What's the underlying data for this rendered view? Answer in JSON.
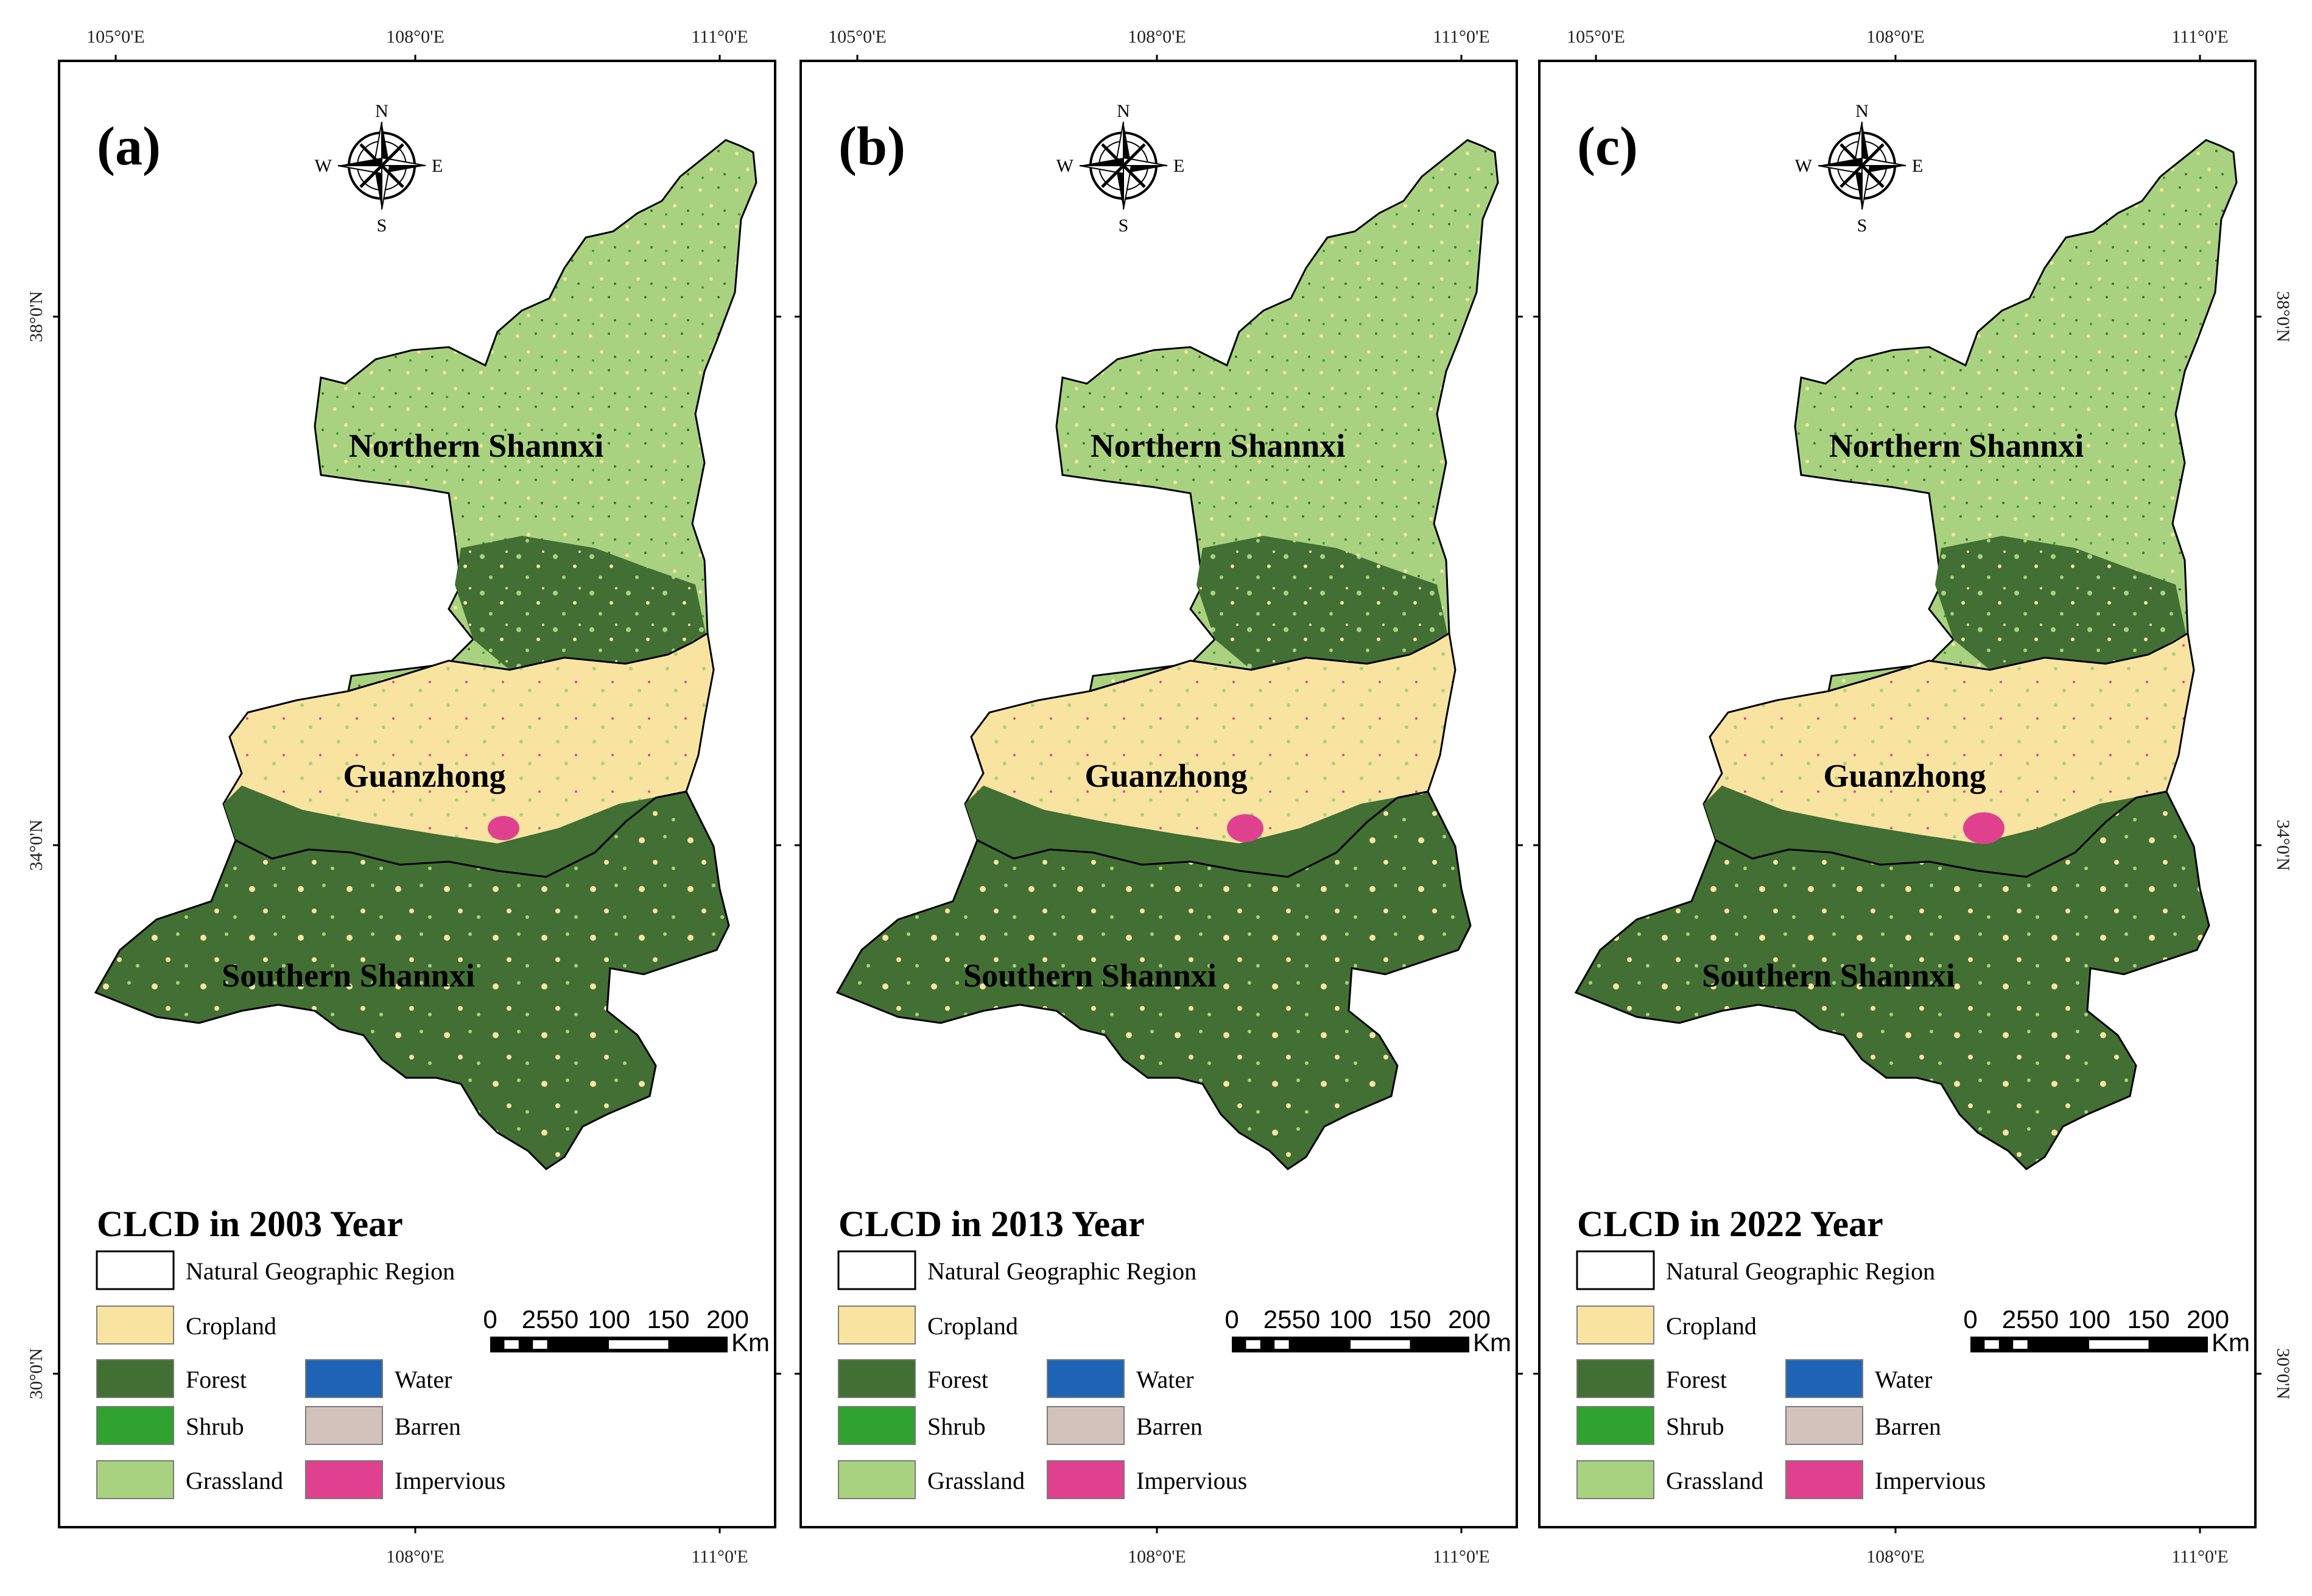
{
  "figure": {
    "panels": [
      {
        "letter": "(a)",
        "title": "CLCD in 2003 Year"
      },
      {
        "letter": "(b)",
        "title": "CLCD in 2013 Year"
      },
      {
        "letter": "(c)",
        "title": "CLCD in 2022 Year"
      }
    ],
    "lon_ticks_top": [
      "105°0'E",
      "108°0'E",
      "111°0'E"
    ],
    "lon_ticks_bottom": [
      "108°0'E",
      "111°0'E"
    ],
    "lat_ticks_left": [
      "38°0'N",
      "34°0'N",
      "30°0'N"
    ],
    "lat_ticks_right": [
      "38°0'N",
      "34°0'N",
      "30°0'N"
    ],
    "regions": [
      "Northern Shannxi",
      "Guanzhong",
      "Southern Shannxi"
    ],
    "compass": {
      "n": "N",
      "s": "S",
      "e": "E",
      "w": "W"
    },
    "legend": {
      "boundary_label": "Natural Geographic Region",
      "classes": [
        {
          "name": "Cropland",
          "color": "#f9e3a1"
        },
        {
          "name": "Forest",
          "color": "#426f33"
        },
        {
          "name": "Water",
          "color": "#1f64b4"
        },
        {
          "name": "Shrub",
          "color": "#2fa22f"
        },
        {
          "name": "Barren",
          "color": "#d3c2bb"
        },
        {
          "name": "Grassland",
          "color": "#a8d27f"
        },
        {
          "name": "Impervious",
          "color": "#e0418f"
        }
      ]
    },
    "scale_bar": {
      "ticks": [
        "0",
        "2550",
        "100",
        "150",
        "200"
      ],
      "unit": "Km"
    }
  }
}
